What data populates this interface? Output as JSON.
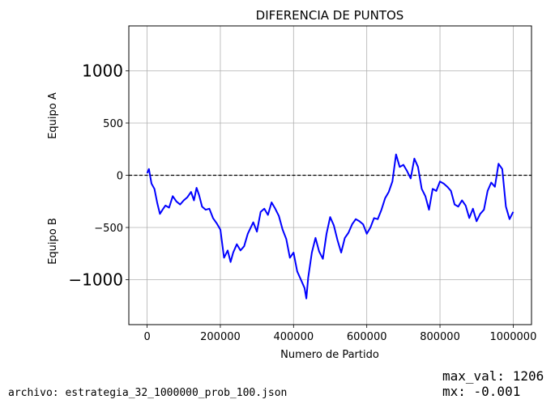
{
  "chart_data": {
    "type": "line",
    "title": "DIFERENCIA DE PUNTOS",
    "xlabel": "Numero de Partido",
    "ylabel_top": "Equipo A",
    "ylabel_bottom": "Equipo B",
    "xlim": [
      -50000,
      1050000
    ],
    "ylim": [
      -1430,
      1430
    ],
    "xticks": [
      0,
      200000,
      400000,
      600000,
      800000,
      1000000
    ],
    "xtick_labels": [
      "0",
      "200000",
      "400000",
      "600000",
      "800000",
      "1000000"
    ],
    "yticks": [
      -1000,
      -500,
      0,
      500,
      1000
    ],
    "ytick_labels": [
      "−1000",
      "−500",
      "0",
      "500",
      "1000"
    ],
    "large_yticks": [
      1000,
      -1000
    ],
    "grid": true,
    "zero_line": {
      "y": 0,
      "style": "dashed",
      "color": "#000000"
    },
    "series": [
      {
        "color": "#0000ff",
        "x": [
          0,
          5000,
          12000,
          20000,
          28000,
          35000,
          42000,
          50000,
          60000,
          70000,
          80000,
          90000,
          100000,
          110000,
          120000,
          128000,
          135000,
          142000,
          150000,
          160000,
          170000,
          180000,
          190000,
          200000,
          210000,
          220000,
          228000,
          235000,
          245000,
          255000,
          265000,
          275000,
          290000,
          300000,
          310000,
          320000,
          330000,
          340000,
          350000,
          360000,
          370000,
          380000,
          390000,
          400000,
          410000,
          420000,
          430000,
          435000,
          440000,
          450000,
          460000,
          470000,
          480000,
          490000,
          500000,
          510000,
          520000,
          530000,
          540000,
          550000,
          560000,
          570000,
          580000,
          590000,
          600000,
          610000,
          620000,
          630000,
          640000,
          650000,
          660000,
          670000,
          680000,
          690000,
          700000,
          710000,
          720000,
          730000,
          740000,
          750000,
          760000,
          770000,
          780000,
          790000,
          800000,
          810000,
          820000,
          830000,
          840000,
          850000,
          860000,
          870000,
          880000,
          890000,
          900000,
          910000,
          920000,
          930000,
          940000,
          950000,
          960000,
          970000,
          980000,
          990000,
          1000000
        ],
        "y": [
          20,
          60,
          -80,
          -130,
          -270,
          -370,
          -330,
          -290,
          -310,
          -200,
          -250,
          -280,
          -240,
          -210,
          -160,
          -240,
          -120,
          -190,
          -300,
          -330,
          -320,
          -410,
          -460,
          -520,
          -790,
          -720,
          -830,
          -740,
          -660,
          -720,
          -680,
          -560,
          -450,
          -540,
          -350,
          -320,
          -380,
          -260,
          -320,
          -390,
          -520,
          -610,
          -790,
          -740,
          -920,
          -1000,
          -1080,
          -1180,
          -980,
          -740,
          -600,
          -730,
          -800,
          -560,
          -400,
          -480,
          -620,
          -740,
          -600,
          -550,
          -470,
          -420,
          -440,
          -470,
          -560,
          -500,
          -410,
          -420,
          -330,
          -220,
          -160,
          -60,
          200,
          80,
          100,
          40,
          -30,
          160,
          80,
          -130,
          -200,
          -330,
          -130,
          -150,
          -60,
          -80,
          -110,
          -150,
          -280,
          -300,
          -240,
          -290,
          -410,
          -320,
          -440,
          -370,
          -330,
          -150,
          -70,
          -110,
          110,
          60,
          -300,
          -420,
          -350
        ]
      }
    ]
  },
  "footer": {
    "file_label": "archivo: estrategia_32_1000000_prob_100.json",
    "max_val": "max_val: 1206",
    "mx": "mx: -0.001"
  }
}
